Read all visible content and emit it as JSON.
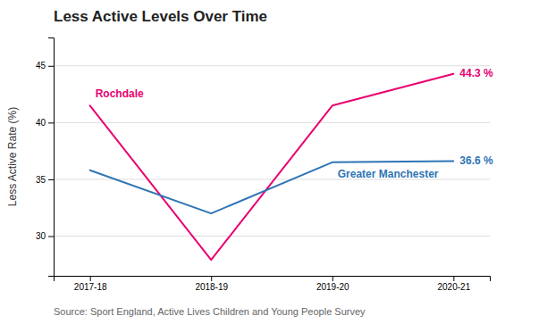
{
  "chart_data": {
    "type": "line",
    "title": "Less Active Levels Over Time",
    "y_label": "Less Active Rate (%)",
    "categories": [
      "2017-18",
      "2018-19",
      "2019-20",
      "2020-21"
    ],
    "series": [
      {
        "name": "Rochdale",
        "color": "#E8006F",
        "values": [
          41.5,
          27.9,
          41.5,
          44.3
        ],
        "value_labels": [
          null,
          null,
          null,
          "44.3 %"
        ]
      },
      {
        "name": "Greater Manchester",
        "color": "#2E75B6",
        "values": [
          35.8,
          32.0,
          36.5,
          36.6
        ],
        "value_labels": [
          null,
          null,
          null,
          "36.6 %"
        ]
      }
    ],
    "ylim": [
      26.5,
      47.5
    ],
    "yticks": [
      30,
      35,
      40,
      45
    ],
    "grid": true,
    "source": "Source: Sport England, Active Lives Children and Young People Survey"
  }
}
